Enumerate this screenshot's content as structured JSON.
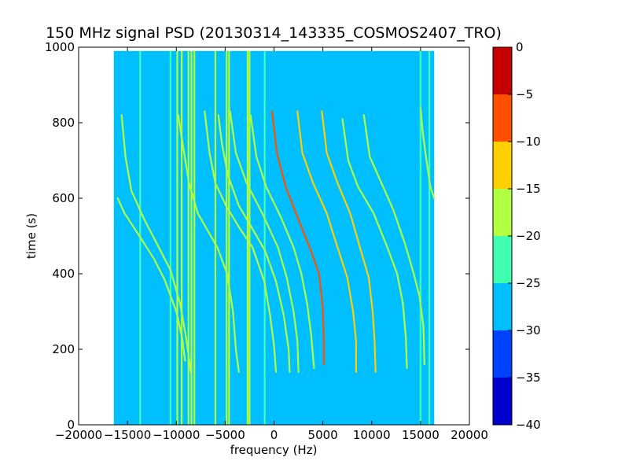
{
  "chart_data": {
    "type": "heatmap",
    "title": "150 MHz signal PSD (20130314_143335_COSMOS2407_TRO)",
    "xlabel": "frequency (Hz)",
    "ylabel": "time (s)",
    "xlim": [
      -20000,
      20000
    ],
    "ylim": [
      0,
      1000
    ],
    "x_ticks": [
      -20000,
      -15000,
      -10000,
      -5000,
      0,
      5000,
      10000,
      15000,
      20000
    ],
    "x_tick_labels": [
      "−20000",
      "−15000",
      "−10000",
      "−5000",
      "0",
      "5000",
      "10000",
      "15000",
      "20000"
    ],
    "y_ticks": [
      0,
      200,
      400,
      600,
      800,
      1000
    ],
    "y_tick_labels": [
      "0",
      "200",
      "400",
      "600",
      "800",
      "1000"
    ],
    "data_extent": {
      "x": [
        -16400,
        16400
      ],
      "y": [
        0,
        990
      ]
    },
    "background_level_db": -27.5,
    "colorbar": {
      "levels": [
        -40,
        -35,
        -30,
        -25,
        -20,
        -15,
        -10,
        -5,
        0
      ],
      "tick_labels": [
        "−40",
        "−35",
        "−30",
        "−25",
        "−20",
        "−15",
        "−10",
        "−5",
        "0"
      ],
      "colors": [
        "#0000cc",
        "#0040ff",
        "#00bfff",
        "#40ffb0",
        "#b0ff40",
        "#ffd000",
        "#ff5000",
        "#c40000"
      ]
    },
    "vertical_lines": [
      {
        "x": -13700,
        "y": [
          0,
          990
        ],
        "level_db": -22
      },
      {
        "x": -10600,
        "y": [
          0,
          990
        ],
        "level_db": -22
      },
      {
        "x": -9900,
        "y": [
          0,
          990
        ],
        "level_db": -18
      },
      {
        "x": -9450,
        "y": [
          0,
          990
        ],
        "level_db": -18
      },
      {
        "x": -8750,
        "y": [
          0,
          990
        ],
        "level_db": -17
      },
      {
        "x": -8450,
        "y": [
          0,
          990
        ],
        "level_db": -17
      },
      {
        "x": -8150,
        "y": [
          0,
          990
        ],
        "level_db": -17
      },
      {
        "x": -6000,
        "y": [
          0,
          990
        ],
        "level_db": -18
      },
      {
        "x": -4850,
        "y": [
          0,
          990
        ],
        "level_db": -17
      },
      {
        "x": -4600,
        "y": [
          0,
          990
        ],
        "level_db": -20
      },
      {
        "x": -2700,
        "y": [
          0,
          990
        ],
        "level_db": -18
      },
      {
        "x": -2500,
        "y": [
          0,
          990
        ],
        "level_db": -17
      },
      {
        "x": -950,
        "y": [
          0,
          990
        ],
        "level_db": -23
      },
      {
        "x": 15000,
        "y": [
          0,
          990
        ],
        "level_db": -23
      },
      {
        "x": 15900,
        "y": [
          0,
          990
        ],
        "level_db": -25
      }
    ],
    "series": [
      {
        "points": [
          [
            -16000,
            600
          ],
          [
            -15300,
            560
          ],
          [
            -13900,
            505
          ],
          [
            -12300,
            440
          ],
          [
            -11200,
            385
          ],
          [
            -10000,
            300
          ],
          [
            -9400,
            230
          ],
          [
            -9100,
            170
          ]
        ],
        "level_db": -19
      },
      {
        "points": [
          [
            -15600,
            820
          ],
          [
            -15200,
            710
          ],
          [
            -14600,
            620
          ],
          [
            -13300,
            545
          ],
          [
            -11800,
            470
          ],
          [
            -10600,
            410
          ],
          [
            -9600,
            320
          ],
          [
            -9000,
            230
          ],
          [
            -8500,
            140
          ]
        ],
        "level_db": -18
      },
      {
        "points": [
          [
            -9800,
            820
          ],
          [
            -9200,
            720
          ],
          [
            -8700,
            640
          ],
          [
            -7800,
            560
          ],
          [
            -5800,
            470
          ],
          [
            -4800,
            400
          ],
          [
            -4200,
            300
          ],
          [
            -3900,
            200
          ],
          [
            -3600,
            140
          ]
        ],
        "level_db": -17
      },
      {
        "points": [
          [
            -7100,
            830
          ],
          [
            -6600,
            720
          ],
          [
            -6000,
            640
          ],
          [
            -4900,
            580
          ],
          [
            -3500,
            520
          ],
          [
            -2200,
            470
          ],
          [
            -1000,
            380
          ],
          [
            -400,
            290
          ],
          [
            0,
            210
          ],
          [
            200,
            140
          ]
        ],
        "level_db": -18
      },
      {
        "points": [
          [
            -5700,
            820
          ],
          [
            -5300,
            740
          ],
          [
            -4700,
            660
          ],
          [
            -3600,
            580
          ],
          [
            -2000,
            510
          ],
          [
            -900,
            460
          ],
          [
            200,
            380
          ],
          [
            1000,
            290
          ],
          [
            1500,
            200
          ],
          [
            1600,
            140
          ]
        ],
        "level_db": -16
      },
      {
        "points": [
          [
            -4500,
            830
          ],
          [
            -3900,
            720
          ],
          [
            -2800,
            640
          ],
          [
            -1200,
            560
          ],
          [
            400,
            470
          ],
          [
            1300,
            390
          ],
          [
            2000,
            300
          ],
          [
            2400,
            220
          ],
          [
            2500,
            140
          ]
        ],
        "level_db": -17
      },
      {
        "points": [
          [
            -2400,
            820
          ],
          [
            -1800,
            710
          ],
          [
            -800,
            630
          ],
          [
            700,
            550
          ],
          [
            2000,
            470
          ],
          [
            2800,
            400
          ],
          [
            3400,
            320
          ],
          [
            3800,
            240
          ],
          [
            4100,
            150
          ]
        ],
        "level_db": -16
      },
      {
        "points": [
          [
            -200,
            830
          ],
          [
            300,
            720
          ],
          [
            1200,
            630
          ],
          [
            2400,
            550
          ],
          [
            3800,
            460
          ],
          [
            4600,
            400
          ],
          [
            5000,
            310
          ],
          [
            5100,
            220
          ],
          [
            5100,
            160
          ]
        ],
        "level_db": -8
      },
      {
        "points": [
          [
            2400,
            830
          ],
          [
            2900,
            720
          ],
          [
            4000,
            640
          ],
          [
            5400,
            560
          ],
          [
            6500,
            470
          ],
          [
            7500,
            390
          ],
          [
            8100,
            300
          ],
          [
            8400,
            220
          ],
          [
            8400,
            140
          ]
        ],
        "level_db": -14
      },
      {
        "points": [
          [
            4900,
            830
          ],
          [
            5400,
            720
          ],
          [
            6500,
            640
          ],
          [
            7800,
            560
          ],
          [
            8800,
            470
          ],
          [
            9700,
            390
          ],
          [
            10100,
            300
          ],
          [
            10300,
            220
          ],
          [
            10400,
            140
          ]
        ],
        "level_db": -14
      },
      {
        "points": [
          [
            7000,
            810
          ],
          [
            7600,
            700
          ],
          [
            8600,
            630
          ],
          [
            10200,
            560
          ],
          [
            11600,
            470
          ],
          [
            12600,
            400
          ],
          [
            13200,
            320
          ],
          [
            13500,
            230
          ],
          [
            13600,
            150
          ]
        ],
        "level_db": -19
      },
      {
        "points": [
          [
            9200,
            820
          ],
          [
            9800,
            710
          ],
          [
            11000,
            640
          ],
          [
            12200,
            570
          ],
          [
            13400,
            480
          ],
          [
            14300,
            400
          ],
          [
            14900,
            340
          ],
          [
            15300,
            260
          ],
          [
            15400,
            160
          ]
        ],
        "level_db": -19
      },
      {
        "points": [
          [
            15000,
            840
          ],
          [
            15200,
            780
          ],
          [
            15500,
            720
          ],
          [
            16000,
            630
          ],
          [
            16400,
            600
          ]
        ],
        "level_db": -18
      }
    ]
  }
}
